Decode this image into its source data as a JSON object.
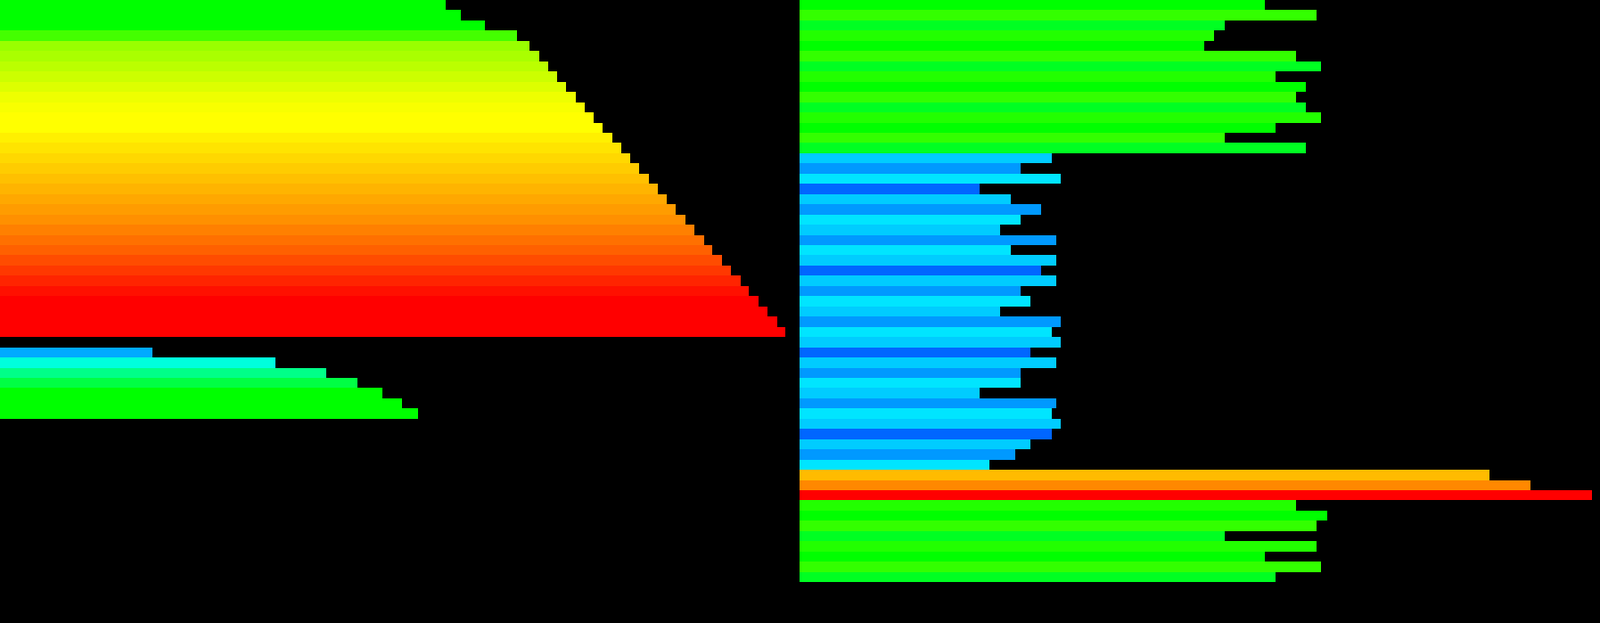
{
  "chart_data": [
    {
      "type": "bar",
      "orientation": "horizontal",
      "tick_labels": false,
      "grid": false,
      "xlim": [
        0,
        100
      ],
      "categories": [
        null,
        null,
        null,
        null,
        null,
        null,
        null,
        null,
        null,
        null,
        null,
        null,
        null,
        null,
        null,
        null,
        null,
        null,
        null,
        null,
        null,
        null,
        null,
        null,
        null,
        null,
        null,
        null,
        null,
        null,
        null,
        null,
        null,
        null,
        null,
        null,
        null,
        null,
        null,
        null,
        null,
        null,
        null,
        null,
        null,
        null,
        null,
        null,
        null,
        null,
        null,
        null,
        null,
        null,
        null,
        null,
        null,
        null,
        null,
        null,
        null
      ],
      "values": [
        56,
        58,
        61,
        65,
        66.6,
        67.8,
        68.9,
        70.1,
        71.2,
        72.4,
        73.5,
        74.7,
        75.8,
        77.0,
        78.1,
        79.3,
        80.4,
        81.6,
        82.7,
        83.9,
        85.0,
        86.2,
        87.3,
        88.5,
        89.6,
        90.8,
        91.9,
        93.1,
        94.2,
        95.4,
        96.5,
        97.7,
        98.8,
        null,
        19.2,
        34.6,
        41.0,
        44.9,
        48.1,
        50.6,
        52.6,
        null,
        null,
        null,
        null,
        null,
        null,
        null,
        null,
        null,
        null,
        null,
        null,
        null,
        null,
        null,
        null,
        null,
        null,
        null,
        null
      ],
      "colors": [
        "#00ff00",
        "#00ff00",
        "#00ff00",
        "#44ff00",
        "#99ff00",
        "#aaff00",
        "#bbff00",
        "#ccff00",
        "#ddff00",
        "#eeff00",
        "#f8ff00",
        "#ffff00",
        "#ffff00",
        "#fff000",
        "#ffe400",
        "#ffd800",
        "#ffcc00",
        "#ffc000",
        "#ffb400",
        "#ffa800",
        "#ff9c00",
        "#ff9000",
        "#ff8000",
        "#ff7000",
        "#ff6000",
        "#ff4c00",
        "#ff3800",
        "#ff2400",
        "#ff1000",
        "#ff0000",
        "#ff0000",
        "#ff0000",
        "#ff0000",
        null,
        "#00aaff",
        "#00ffdd",
        "#00ff88",
        "#00ff44",
        "#00ff00",
        "#00ff00",
        "#00ff00",
        null,
        null,
        null,
        null,
        null,
        null,
        null,
        null,
        null,
        null,
        null,
        null,
        null,
        null,
        null,
        null,
        null,
        null,
        null,
        null
      ]
    },
    {
      "type": "bar",
      "orientation": "horizontal",
      "tick_labels": false,
      "grid": false,
      "xlim": [
        0,
        100
      ],
      "categories": [
        null,
        null,
        null,
        null,
        null,
        null,
        null,
        null,
        null,
        null,
        null,
        null,
        null,
        null,
        null,
        null,
        null,
        null,
        null,
        null,
        null,
        null,
        null,
        null,
        null,
        null,
        null,
        null,
        null,
        null,
        null,
        null,
        null,
        null,
        null,
        null,
        null,
        null,
        null,
        null,
        null,
        null,
        null,
        null,
        null,
        null,
        null,
        null,
        null,
        null,
        null,
        null,
        null,
        null,
        null,
        null,
        null,
        null,
        null,
        null,
        null
      ],
      "values": [
        58.2,
        64.6,
        53.1,
        51.8,
        50.6,
        62.0,
        65.2,
        59.5,
        63.3,
        62.0,
        63.3,
        65.2,
        59.5,
        53.1,
        63.3,
        31.5,
        27.6,
        32.7,
        22.5,
        26.4,
        30.2,
        27.6,
        25.1,
        32.1,
        26.4,
        32.1,
        30.2,
        32.1,
        27.6,
        28.9,
        25.1,
        32.7,
        31.5,
        32.7,
        28.9,
        32.1,
        27.6,
        27.6,
        22.5,
        32.1,
        31.5,
        32.7,
        31.5,
        28.9,
        27.0,
        23.8,
        86.2,
        91.3,
        99.0,
        62.0,
        65.9,
        64.6,
        53.1,
        64.6,
        58.2,
        65.2,
        59.5,
        null,
        null,
        null,
        null
      ],
      "colors": [
        "#00ff00",
        "#33ff00",
        "#00ff22",
        "#22ff00",
        "#00ff00",
        "#33ff00",
        "#00ff22",
        "#22ff00",
        "#00ff00",
        "#33ff00",
        "#00ff22",
        "#22ff00",
        "#00ff00",
        "#33ff00",
        "#00ff22",
        "#00ccff",
        "#0099ff",
        "#00e5ff",
        "#0066ff",
        "#00ccff",
        "#0099ff",
        "#00e5ff",
        "#00ccff",
        "#0099ff",
        "#00e5ff",
        "#00ccff",
        "#0066ff",
        "#00ccff",
        "#0099ff",
        "#00e5ff",
        "#00ccff",
        "#0099ff",
        "#00e5ff",
        "#00ccff",
        "#0066ff",
        "#00ccff",
        "#0099ff",
        "#00e5ff",
        "#00ccff",
        "#0099ff",
        "#00e5ff",
        "#00ccff",
        "#0066ff",
        "#00ccff",
        "#0099ff",
        "#00e5ff",
        "#ffbb00",
        "#ff8800",
        "#ff0000",
        "#22ff00",
        "#00ff00",
        "#33ff00",
        "#00ff22",
        "#22ff00",
        "#00ff00",
        "#33ff00",
        "#00ff22",
        null,
        null,
        null,
        null
      ]
    }
  ]
}
